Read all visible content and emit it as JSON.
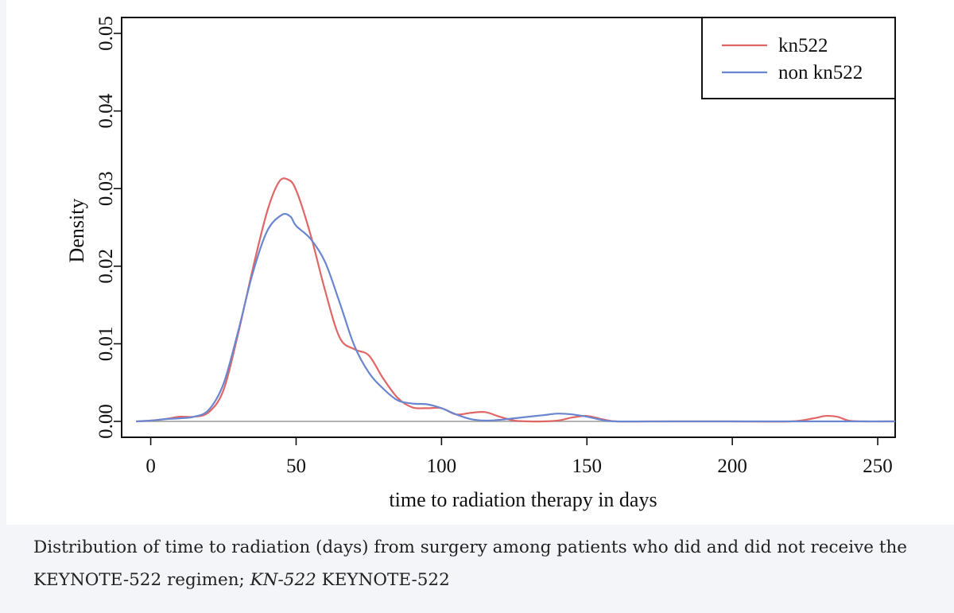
{
  "chart_data": {
    "type": "line",
    "title": "",
    "xlabel": "time to radiation therapy in days",
    "ylabel": "Density",
    "xlim": [
      -10,
      256
    ],
    "ylim": [
      0,
      0.05
    ],
    "x_ticks": [
      0,
      50,
      100,
      150,
      200,
      250
    ],
    "x_tick_labels": [
      "0",
      "50",
      "100",
      "150",
      "200",
      "250"
    ],
    "y_ticks": [
      0,
      0.01,
      0.02,
      0.03,
      0.04,
      0.05
    ],
    "y_tick_labels": [
      "0.00",
      "0.01",
      "0.02",
      "0.03",
      "0.04",
      "0.05"
    ],
    "grid": false,
    "legend_position": "top-right",
    "series": [
      {
        "name": "kn522",
        "color": "#e06666",
        "x": [
          -5,
          0,
          5,
          10,
          15,
          20,
          25,
          30,
          35,
          40,
          44,
          47,
          50,
          55,
          60,
          65,
          70,
          75,
          80,
          85,
          90,
          95,
          100,
          105,
          110,
          115,
          120,
          125,
          130,
          135,
          140,
          145,
          150,
          155,
          160,
          170,
          180,
          200,
          220,
          228,
          232,
          236,
          240,
          245,
          256
        ],
        "y": [
          0,
          0.0001,
          0.0003,
          0.0006,
          0.0006,
          0.0012,
          0.004,
          0.0112,
          0.0195,
          0.027,
          0.0308,
          0.0312,
          0.0298,
          0.024,
          0.0168,
          0.0108,
          0.0093,
          0.0085,
          0.0055,
          0.003,
          0.0018,
          0.0017,
          0.0017,
          0.0009,
          0.0011,
          0.0012,
          0.0006,
          0.0001,
          0.0,
          0.0,
          0.0001,
          0.0005,
          0.0007,
          0.0003,
          0.0,
          0.0,
          0.0,
          0.0,
          0.0,
          0.0004,
          0.0007,
          0.0006,
          0.0001,
          0.0,
          0.0
        ]
      },
      {
        "name": "non kn522",
        "color": "#6a86cf",
        "x": [
          -5,
          0,
          5,
          10,
          15,
          20,
          25,
          30,
          35,
          40,
          45,
          48,
          50,
          55,
          60,
          65,
          70,
          75,
          80,
          85,
          90,
          95,
          100,
          105,
          110,
          115,
          120,
          125,
          130,
          135,
          140,
          145,
          150,
          155,
          160,
          180,
          200,
          230,
          256
        ],
        "y": [
          0,
          0.0001,
          0.0003,
          0.0004,
          0.0006,
          0.0015,
          0.0048,
          0.0115,
          0.019,
          0.0245,
          0.0266,
          0.0264,
          0.0252,
          0.0235,
          0.0205,
          0.0153,
          0.0098,
          0.0063,
          0.0042,
          0.0027,
          0.0023,
          0.0022,
          0.0017,
          0.0009,
          0.0003,
          0.0001,
          0.0002,
          0.0004,
          0.0006,
          0.0008,
          0.001,
          0.0009,
          0.0006,
          0.0002,
          0.0,
          0.0,
          0.0,
          0.0,
          0.0
        ]
      }
    ]
  },
  "caption": {
    "text_before": "Distribution of time to radiation (days) from surgery among patients who did and did not receive the KEYNOTE-522 regimen; ",
    "abbrev": "KN-522",
    "text_after": " KEYNOTE-522"
  }
}
